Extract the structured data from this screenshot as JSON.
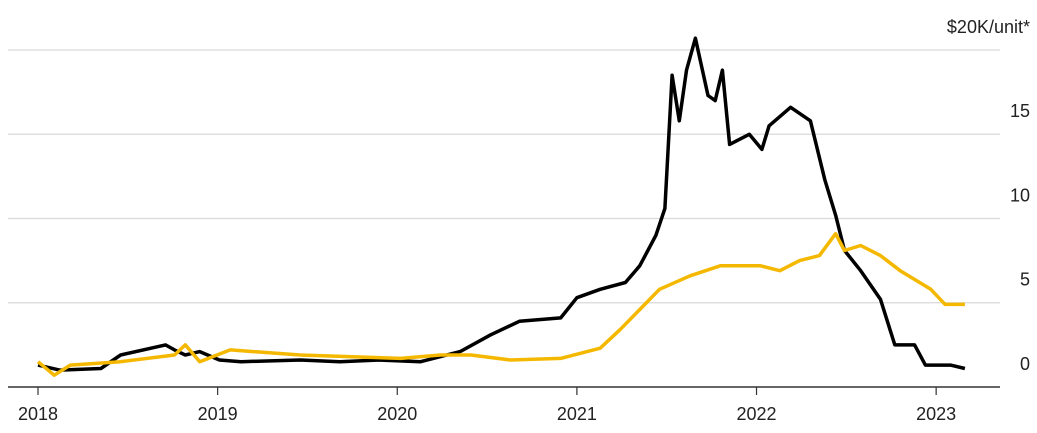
{
  "chart_data": {
    "type": "line",
    "xlim": [
      2018,
      2023.4
    ],
    "xticks": [
      2018,
      2019,
      2020,
      2021,
      2022,
      2023
    ],
    "ylim": [
      0,
      20
    ],
    "yticks": [
      0,
      5,
      10,
      15,
      {
        "value": 20,
        "label": "$20K/unit*"
      }
    ],
    "grid": true,
    "series": [
      {
        "color": "#000000",
        "x": [
          2018.0,
          2018.12,
          2018.35,
          2018.46,
          2018.71,
          2018.76,
          2018.82,
          2018.9,
          2019.01,
          2019.13,
          2019.46,
          2019.68,
          2019.9,
          2020.13,
          2020.35,
          2020.52,
          2020.68,
          2020.91,
          2021.0,
          2021.13,
          2021.27,
          2021.35,
          2021.44,
          2021.49,
          2021.53,
          2021.57,
          2021.61,
          2021.66,
          2021.73,
          2021.77,
          2021.81,
          2021.85,
          2021.96,
          2022.03,
          2022.07,
          2022.19,
          2022.3,
          2022.38,
          2022.44,
          2022.49,
          2022.58,
          2022.69,
          2022.77,
          2022.88,
          2022.94,
          2023.08,
          2023.16
        ],
        "values": [
          1.3,
          1.0,
          1.1,
          1.9,
          2.5,
          2.2,
          1.9,
          2.1,
          1.6,
          1.5,
          1.6,
          1.5,
          1.6,
          1.5,
          2.1,
          3.1,
          3.9,
          4.1,
          5.3,
          5.8,
          6.2,
          7.2,
          9.0,
          10.6,
          18.5,
          15.8,
          18.8,
          20.7,
          17.3,
          17.0,
          18.8,
          14.4,
          15.0,
          14.1,
          15.5,
          16.6,
          15.8,
          12.3,
          10.2,
          8.1,
          6.9,
          5.2,
          2.5,
          2.5,
          1.3,
          1.3,
          1.1
        ]
      },
      {
        "color": "#f5b800",
        "x": [
          2018.0,
          2018.09,
          2018.18,
          2018.46,
          2018.76,
          2018.82,
          2018.9,
          2019.07,
          2019.46,
          2020.02,
          2020.24,
          2020.41,
          2020.63,
          2020.91,
          2021.13,
          2021.24,
          2021.35,
          2021.46,
          2021.63,
          2021.8,
          2022.02,
          2022.13,
          2022.24,
          2022.35,
          2022.44,
          2022.49,
          2022.58,
          2022.69,
          2022.8,
          2022.97,
          2023.05,
          2023.16
        ],
        "values": [
          1.5,
          0.7,
          1.3,
          1.5,
          1.9,
          2.5,
          1.5,
          2.2,
          1.9,
          1.7,
          1.9,
          1.9,
          1.6,
          1.7,
          2.3,
          3.4,
          4.6,
          5.8,
          6.6,
          7.2,
          7.2,
          6.9,
          7.5,
          7.8,
          9.1,
          8.1,
          8.4,
          7.8,
          6.9,
          5.8,
          4.9,
          4.9
        ]
      }
    ]
  }
}
